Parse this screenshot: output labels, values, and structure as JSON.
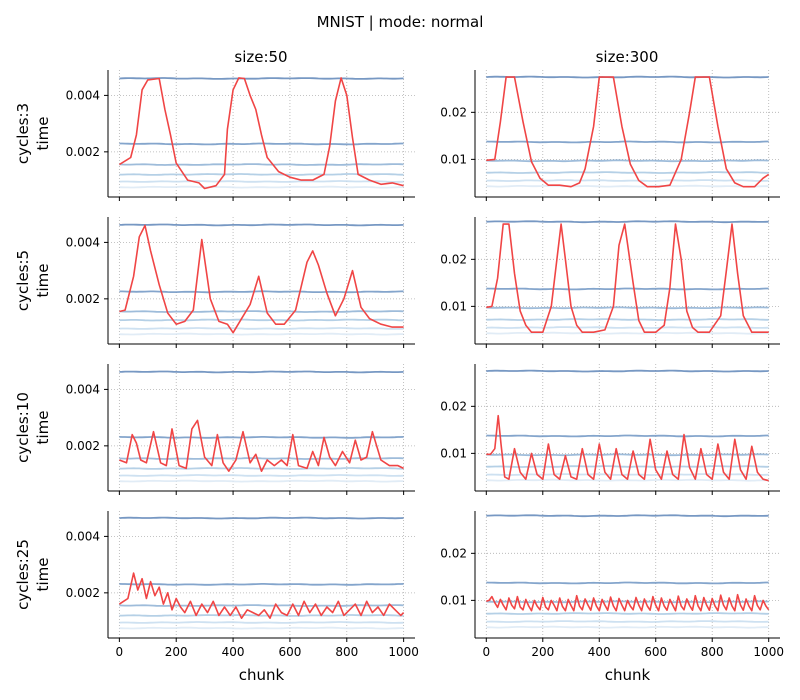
{
  "figure": {
    "suptitle": "MNIST | mode: normal",
    "col_titles": [
      "size:50",
      "size:300"
    ],
    "row_labels": [
      "cycles:3",
      "cycles:5",
      "cycles:10",
      "cycles:25"
    ],
    "ylabel": "time",
    "xlabel": "chunk",
    "colors": {
      "highlight": "#f04545",
      "blues": [
        "#5f86b8",
        "#6f95c3",
        "#8db0d3",
        "#a8c8e2",
        "#c6dcee",
        "#dce9f5"
      ]
    }
  },
  "chart_data": [
    {
      "type": "line",
      "row": 0,
      "col": 0,
      "title": "size:50",
      "ylabel": "cycles:3\ntime",
      "xlabel": "",
      "xlim": [
        -40,
        1040
      ],
      "ylim": [
        0.0004,
        0.0049
      ],
      "xticks": [
        0,
        200,
        400,
        600,
        800,
        1000
      ],
      "yticks": [
        0.002,
        0.004
      ],
      "ytick_labels": [
        "0.002",
        "0.004"
      ],
      "grid": "dotted",
      "baselines": [
        0.0046,
        0.00228,
        0.00155,
        0.0012,
        0.00095,
        0.00075
      ],
      "highlight": {
        "x": [
          0,
          40,
          60,
          80,
          100,
          140,
          160,
          180,
          200,
          240,
          280,
          300,
          340,
          370,
          380,
          400,
          420,
          440,
          460,
          480,
          500,
          520,
          560,
          600,
          640,
          680,
          720,
          740,
          760,
          780,
          800,
          820,
          840,
          880,
          920,
          960,
          1000
        ],
        "y": [
          0.00155,
          0.0018,
          0.0026,
          0.0042,
          0.00455,
          0.0046,
          0.0035,
          0.0026,
          0.0016,
          0.001,
          0.0009,
          0.0007,
          0.0008,
          0.0012,
          0.0028,
          0.0042,
          0.00462,
          0.0046,
          0.004,
          0.0035,
          0.0026,
          0.0018,
          0.0013,
          0.0011,
          0.001,
          0.001,
          0.0012,
          0.0022,
          0.0038,
          0.00462,
          0.004,
          0.0025,
          0.0012,
          0.001,
          0.00085,
          0.0009,
          0.0008
        ]
      }
    },
    {
      "type": "line",
      "row": 0,
      "col": 1,
      "title": "size:300",
      "ylabel": "",
      "xlabel": "",
      "xlim": [
        -40,
        1040
      ],
      "ylim": [
        0.002,
        0.029
      ],
      "xticks": [
        0,
        200,
        400,
        600,
        800,
        1000
      ],
      "yticks": [
        0.01,
        0.02
      ],
      "ytick_labels": [
        "0.01",
        "0.02"
      ],
      "grid": "dotted",
      "baselines": [
        0.0275,
        0.0137,
        0.0097,
        0.0072,
        0.0055,
        0.0043
      ],
      "highlight": {
        "x": [
          0,
          30,
          50,
          70,
          100,
          130,
          160,
          190,
          220,
          260,
          300,
          330,
          350,
          380,
          400,
          420,
          450,
          480,
          510,
          540,
          570,
          610,
          650,
          690,
          720,
          740,
          760,
          790,
          820,
          850,
          880,
          910,
          950,
          980,
          1000
        ],
        "y": [
          0.0098,
          0.01,
          0.018,
          0.0275,
          0.0275,
          0.018,
          0.0095,
          0.006,
          0.0045,
          0.0045,
          0.0042,
          0.005,
          0.008,
          0.017,
          0.0275,
          0.0275,
          0.0275,
          0.017,
          0.009,
          0.0055,
          0.0042,
          0.0042,
          0.0045,
          0.01,
          0.02,
          0.0275,
          0.0275,
          0.0275,
          0.017,
          0.008,
          0.005,
          0.0042,
          0.0042,
          0.006,
          0.0068
        ]
      }
    },
    {
      "type": "line",
      "row": 1,
      "col": 0,
      "title": "",
      "ylabel": "cycles:5\ntime",
      "xlabel": "",
      "xlim": [
        -40,
        1040
      ],
      "ylim": [
        0.0004,
        0.0049
      ],
      "xticks": [
        0,
        200,
        400,
        600,
        800,
        1000
      ],
      "yticks": [
        0.002,
        0.004
      ],
      "ytick_labels": [
        "0.002",
        "0.004"
      ],
      "grid": "dotted",
      "baselines": [
        0.00462,
        0.00225,
        0.00155,
        0.00125,
        0.00095,
        0.00075
      ],
      "highlight": {
        "x": [
          0,
          20,
          50,
          70,
          90,
          110,
          140,
          170,
          200,
          230,
          260,
          290,
          320,
          350,
          380,
          400,
          430,
          460,
          490,
          520,
          550,
          580,
          620,
          660,
          680,
          700,
          730,
          760,
          790,
          820,
          850,
          880,
          920,
          960,
          1000
        ],
        "y": [
          0.00155,
          0.0016,
          0.0028,
          0.0042,
          0.0046,
          0.0037,
          0.0025,
          0.0015,
          0.0011,
          0.0012,
          0.0016,
          0.0041,
          0.002,
          0.0012,
          0.0011,
          0.0008,
          0.0013,
          0.0018,
          0.0028,
          0.0015,
          0.0011,
          0.0011,
          0.0016,
          0.0033,
          0.0037,
          0.0032,
          0.0022,
          0.0014,
          0.002,
          0.003,
          0.0017,
          0.0013,
          0.0011,
          0.001,
          0.001
        ]
      }
    },
    {
      "type": "line",
      "row": 1,
      "col": 1,
      "title": "",
      "ylabel": "",
      "xlabel": "",
      "xlim": [
        -40,
        1040
      ],
      "ylim": [
        0.002,
        0.029
      ],
      "xticks": [
        0,
        200,
        400,
        600,
        800,
        1000
      ],
      "yticks": [
        0.01,
        0.02
      ],
      "ytick_labels": [
        "0.01",
        "0.02"
      ],
      "grid": "dotted",
      "baselines": [
        0.028,
        0.0137,
        0.0097,
        0.0072,
        0.0055,
        0.0043
      ],
      "highlight": {
        "x": [
          0,
          20,
          40,
          60,
          80,
          100,
          120,
          140,
          160,
          200,
          230,
          250,
          265,
          280,
          300,
          320,
          340,
          380,
          420,
          450,
          470,
          490,
          520,
          540,
          560,
          600,
          630,
          650,
          670,
          690,
          710,
          730,
          750,
          790,
          830,
          850,
          870,
          890,
          910,
          940,
          960,
          1000
        ],
        "y": [
          0.0098,
          0.01,
          0.016,
          0.0275,
          0.0275,
          0.017,
          0.009,
          0.006,
          0.0045,
          0.0045,
          0.01,
          0.02,
          0.0275,
          0.02,
          0.01,
          0.006,
          0.0045,
          0.0045,
          0.005,
          0.01,
          0.023,
          0.0275,
          0.015,
          0.007,
          0.0045,
          0.0045,
          0.006,
          0.014,
          0.0275,
          0.02,
          0.009,
          0.0055,
          0.0045,
          0.0045,
          0.008,
          0.0175,
          0.0275,
          0.017,
          0.008,
          0.0045,
          0.0045,
          0.0045
        ]
      }
    },
    {
      "type": "line",
      "row": 2,
      "col": 0,
      "title": "",
      "ylabel": "cycles:10\ntime",
      "xlabel": "",
      "xlim": [
        -40,
        1040
      ],
      "ylim": [
        0.0004,
        0.0049
      ],
      "xticks": [
        0,
        200,
        400,
        600,
        800,
        1000
      ],
      "yticks": [
        0.002,
        0.004
      ],
      "ytick_labels": [
        "0.002",
        "0.004"
      ],
      "grid": "dotted",
      "baselines": [
        0.00462,
        0.0023,
        0.00155,
        0.0012,
        0.00095,
        0.00075
      ],
      "highlight": {
        "x": [
          0,
          25,
          45,
          60,
          75,
          95,
          120,
          145,
          165,
          185,
          210,
          235,
          255,
          275,
          300,
          325,
          345,
          365,
          385,
          410,
          435,
          460,
          480,
          500,
          520,
          545,
          570,
          590,
          610,
          630,
          660,
          680,
          700,
          720,
          740,
          760,
          785,
          810,
          830,
          850,
          870,
          890,
          920,
          950,
          980,
          1000
        ],
        "y": [
          0.0015,
          0.0014,
          0.0024,
          0.0021,
          0.0015,
          0.0014,
          0.0025,
          0.0014,
          0.0013,
          0.0026,
          0.0013,
          0.0012,
          0.0026,
          0.0029,
          0.0016,
          0.0013,
          0.0024,
          0.0014,
          0.0011,
          0.0015,
          0.0025,
          0.0014,
          0.0017,
          0.0011,
          0.0015,
          0.0013,
          0.0015,
          0.0013,
          0.0024,
          0.0013,
          0.0012,
          0.0018,
          0.0013,
          0.0023,
          0.0016,
          0.0013,
          0.0018,
          0.0014,
          0.0022,
          0.0015,
          0.0016,
          0.0025,
          0.0015,
          0.0013,
          0.0013,
          0.0012
        ]
      }
    },
    {
      "type": "line",
      "row": 2,
      "col": 1,
      "title": "",
      "ylabel": "",
      "xlabel": "",
      "xlim": [
        -40,
        1040
      ],
      "ylim": [
        0.002,
        0.029
      ],
      "xticks": [
        0,
        200,
        400,
        600,
        800,
        1000
      ],
      "yticks": [
        0.01,
        0.02
      ],
      "ytick_labels": [
        "0.01",
        "0.02"
      ],
      "grid": "dotted",
      "baselines": [
        0.0275,
        0.0137,
        0.0097,
        0.0072,
        0.0055,
        0.0043
      ],
      "highlight": {
        "x": [
          0,
          15,
          30,
          42,
          52,
          65,
          80,
          100,
          120,
          140,
          160,
          180,
          200,
          220,
          240,
          260,
          280,
          300,
          320,
          340,
          360,
          380,
          400,
          420,
          440,
          460,
          480,
          500,
          520,
          540,
          560,
          580,
          600,
          620,
          640,
          660,
          680,
          700,
          720,
          740,
          760,
          780,
          800,
          820,
          840,
          860,
          880,
          900,
          920,
          940,
          960,
          980,
          1000
        ],
        "y": [
          0.0098,
          0.0098,
          0.011,
          0.018,
          0.012,
          0.005,
          0.0045,
          0.011,
          0.006,
          0.0045,
          0.01,
          0.0055,
          0.0045,
          0.012,
          0.0055,
          0.0045,
          0.0095,
          0.005,
          0.0045,
          0.011,
          0.0055,
          0.0045,
          0.012,
          0.006,
          0.0045,
          0.011,
          0.0055,
          0.0045,
          0.0105,
          0.0055,
          0.0045,
          0.013,
          0.0065,
          0.0045,
          0.0105,
          0.0055,
          0.0045,
          0.014,
          0.007,
          0.0045,
          0.011,
          0.0055,
          0.0045,
          0.012,
          0.006,
          0.0045,
          0.013,
          0.0065,
          0.0045,
          0.0115,
          0.006,
          0.0045,
          0.0042
        ]
      }
    },
    {
      "type": "line",
      "row": 3,
      "col": 0,
      "title": "",
      "ylabel": "cycles:25\ntime",
      "xlabel": "chunk",
      "xlim": [
        -40,
        1040
      ],
      "ylim": [
        0.0004,
        0.0049
      ],
      "xticks": [
        0,
        200,
        400,
        600,
        800,
        1000
      ],
      "xtick_labels": [
        "0",
        "200",
        "400",
        "600",
        "800",
        "1000"
      ],
      "yticks": [
        0.002,
        0.004
      ],
      "ytick_labels": [
        "0.002",
        "0.004"
      ],
      "grid": "dotted",
      "baselines": [
        0.00465,
        0.0023,
        0.00155,
        0.0012,
        0.00095,
        0.00075
      ],
      "highlight": {
        "x": [
          0,
          15,
          30,
          50,
          65,
          80,
          95,
          110,
          125,
          140,
          155,
          170,
          185,
          200,
          215,
          230,
          250,
          270,
          290,
          310,
          330,
          350,
          370,
          390,
          410,
          430,
          450,
          470,
          490,
          510,
          530,
          550,
          570,
          590,
          610,
          630,
          650,
          670,
          690,
          710,
          730,
          750,
          770,
          790,
          810,
          830,
          850,
          870,
          890,
          910,
          930,
          950,
          970,
          990,
          1000
        ],
        "y": [
          0.0016,
          0.0017,
          0.0018,
          0.0027,
          0.0021,
          0.0025,
          0.0018,
          0.0024,
          0.0019,
          0.0022,
          0.0016,
          0.002,
          0.0014,
          0.0018,
          0.0015,
          0.0013,
          0.0017,
          0.0012,
          0.0016,
          0.0013,
          0.0017,
          0.0012,
          0.0015,
          0.0012,
          0.0015,
          0.0011,
          0.0014,
          0.0013,
          0.0012,
          0.0014,
          0.0011,
          0.0016,
          0.0013,
          0.0012,
          0.0016,
          0.0012,
          0.0017,
          0.0013,
          0.0016,
          0.0012,
          0.0015,
          0.0013,
          0.0017,
          0.0012,
          0.0014,
          0.0016,
          0.0012,
          0.0017,
          0.0013,
          0.0015,
          0.0012,
          0.0016,
          0.0014,
          0.0012,
          0.0013
        ]
      }
    },
    {
      "type": "line",
      "row": 3,
      "col": 1,
      "title": "",
      "ylabel": "",
      "xlabel": "chunk",
      "xlim": [
        -40,
        1040
      ],
      "ylim": [
        0.002,
        0.029
      ],
      "xticks": [
        0,
        200,
        400,
        600,
        800,
        1000
      ],
      "xtick_labels": [
        "0",
        "200",
        "400",
        "600",
        "800",
        "1000"
      ],
      "yticks": [
        0.01,
        0.02
      ],
      "ytick_labels": [
        "0.01",
        "0.02"
      ],
      "grid": "dotted",
      "baselines": [
        0.028,
        0.0137,
        0.0097,
        0.0072,
        0.0055,
        0.0043
      ],
      "highlight": {
        "x": [
          0,
          10,
          20,
          30,
          40,
          50,
          60,
          70,
          80,
          90,
          100,
          110,
          120,
          130,
          140,
          150,
          160,
          170,
          180,
          190,
          200,
          210,
          220,
          230,
          240,
          250,
          260,
          270,
          280,
          290,
          300,
          310,
          320,
          330,
          340,
          350,
          360,
          370,
          380,
          390,
          400,
          410,
          420,
          430,
          440,
          450,
          460,
          470,
          480,
          490,
          500,
          510,
          520,
          530,
          540,
          550,
          560,
          570,
          580,
          590,
          600,
          610,
          620,
          630,
          640,
          650,
          660,
          670,
          680,
          690,
          700,
          710,
          720,
          730,
          740,
          750,
          760,
          770,
          780,
          790,
          800,
          810,
          820,
          830,
          840,
          850,
          860,
          870,
          880,
          890,
          900,
          910,
          920,
          930,
          940,
          950,
          960,
          970,
          980,
          990,
          1000
        ],
        "y": [
          0.0098,
          0.01,
          0.0108,
          0.0095,
          0.0085,
          0.0102,
          0.009,
          0.008,
          0.0105,
          0.009,
          0.0082,
          0.0108,
          0.0086,
          0.008,
          0.0102,
          0.0088,
          0.0078,
          0.01,
          0.0088,
          0.008,
          0.0106,
          0.0086,
          0.008,
          0.01,
          0.009,
          0.0078,
          0.0105,
          0.0087,
          0.0078,
          0.0102,
          0.0089,
          0.0078,
          0.011,
          0.0088,
          0.008,
          0.0103,
          0.009,
          0.0079,
          0.0105,
          0.0088,
          0.0078,
          0.0102,
          0.009,
          0.0079,
          0.0107,
          0.0088,
          0.0078,
          0.0104,
          0.009,
          0.0078,
          0.01,
          0.0088,
          0.008,
          0.0106,
          0.009,
          0.0078,
          0.0103,
          0.0088,
          0.0079,
          0.0108,
          0.009,
          0.0078,
          0.0105,
          0.0088,
          0.0079,
          0.0102,
          0.009,
          0.0078,
          0.0109,
          0.0088,
          0.008,
          0.0103,
          0.0089,
          0.0079,
          0.011,
          0.0088,
          0.0078,
          0.0106,
          0.009,
          0.0079,
          0.0104,
          0.0088,
          0.0078,
          0.0111,
          0.009,
          0.008,
          0.0105,
          0.0088,
          0.0078,
          0.0112,
          0.009,
          0.0079,
          0.0103,
          0.0088,
          0.0078,
          0.011,
          0.0089,
          0.008,
          0.01,
          0.0088,
          0.008
        ]
      }
    }
  ]
}
